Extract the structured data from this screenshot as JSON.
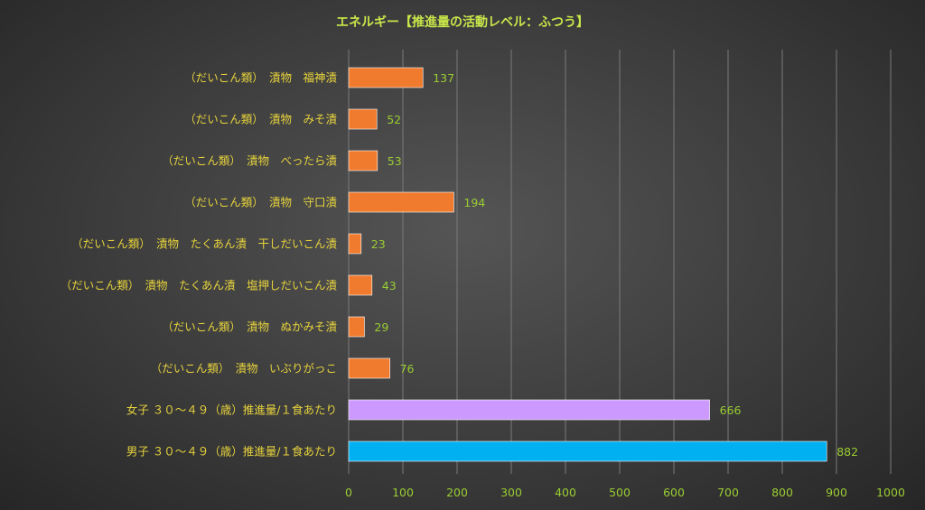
{
  "colors": {
    "title": "#c8e64a",
    "category_label": "#e6d23c",
    "tick_label": "#9acd32",
    "data_label": "#9acd32",
    "grid": "#7a7a7a",
    "bar_pickle": "#f07b2e",
    "bar_female": "#cc99ff",
    "bar_male": "#00b0f0"
  },
  "chart_data": {
    "type": "bar",
    "orientation": "horizontal",
    "title": "エネルギー【推進量の活動レベル：ふつう】",
    "xlim": [
      0,
      1000
    ],
    "xticks": [
      "0",
      "100",
      "200",
      "300",
      "400",
      "500",
      "600",
      "700",
      "800",
      "900",
      "1000"
    ],
    "grid": "vertical",
    "categories": [
      "（だいこん類）　漬物　福神漬",
      "（だいこん類）　漬物　みそ漬",
      "（だいこん類）　漬物　べったら漬",
      "（だいこん類）　漬物　守口漬",
      "（だいこん類）　漬物　たくあん漬　干しだいこん漬",
      "（だいこん類）　漬物　たくあん漬　塩押しだいこん漬",
      "（だいこん類）　漬物　ぬかみそ漬",
      "（だいこん類）　漬物　いぶりがっこ",
      "女子 ３０～４９（歳）推進量/１食あたり",
      "男子 ３０～４９（歳）推進量/１食あたり"
    ],
    "values": [
      137,
      52,
      53,
      194,
      23,
      43,
      29,
      76,
      666,
      882
    ],
    "bar_colors": [
      "#f07b2e",
      "#f07b2e",
      "#f07b2e",
      "#f07b2e",
      "#f07b2e",
      "#f07b2e",
      "#f07b2e",
      "#f07b2e",
      "#cc99ff",
      "#00b0f0"
    ]
  }
}
